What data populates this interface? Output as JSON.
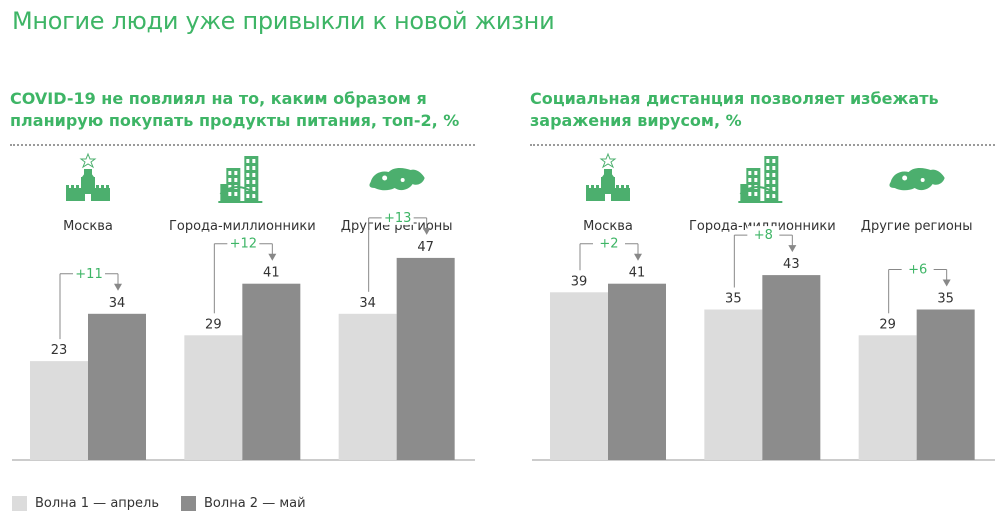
{
  "page_title": "Многие люди уже привыкли к новой жизни",
  "colors": {
    "accent": "#3eb566",
    "wave1": "#dcdcdc",
    "wave2": "#8c8c8c",
    "icon": "#4caf6e"
  },
  "legend": {
    "wave1": "Волна 1 — апрель",
    "wave2": "Волна 2 — май"
  },
  "chart_data": [
    {
      "type": "bar",
      "title_lines": [
        "COVID-19 не повлиял на то, каким образом я",
        "планирую покупать продукты питания, топ-2, %"
      ],
      "categories": [
        "Москва",
        "Города-миллионники",
        "Другие регионы"
      ],
      "icons": [
        "kremlin-icon",
        "city-buildings-icon",
        "russia-map-icon"
      ],
      "series": [
        {
          "name": "Волна 1 — апрель",
          "values": [
            23,
            29,
            34
          ]
        },
        {
          "name": "Волна 2 — май",
          "values": [
            34,
            41,
            47
          ]
        }
      ],
      "deltas": [
        "+11",
        "+12",
        "+13"
      ],
      "ylim": [
        0,
        60
      ]
    },
    {
      "type": "bar",
      "title_lines": [
        "Социальная дистанция позволяет избежать",
        "заражения вирусом, %"
      ],
      "categories": [
        "Москва",
        "Города-миллионники",
        "Другие регионы"
      ],
      "icons": [
        "kremlin-icon",
        "city-buildings-icon",
        "russia-map-icon"
      ],
      "series": [
        {
          "name": "Волна 1 — апрель",
          "values": [
            39,
            35,
            29
          ]
        },
        {
          "name": "Волна 2 — май",
          "values": [
            41,
            43,
            35
          ]
        }
      ],
      "deltas": [
        "+2",
        "+8",
        "+6"
      ],
      "ylim": [
        0,
        60
      ]
    }
  ]
}
